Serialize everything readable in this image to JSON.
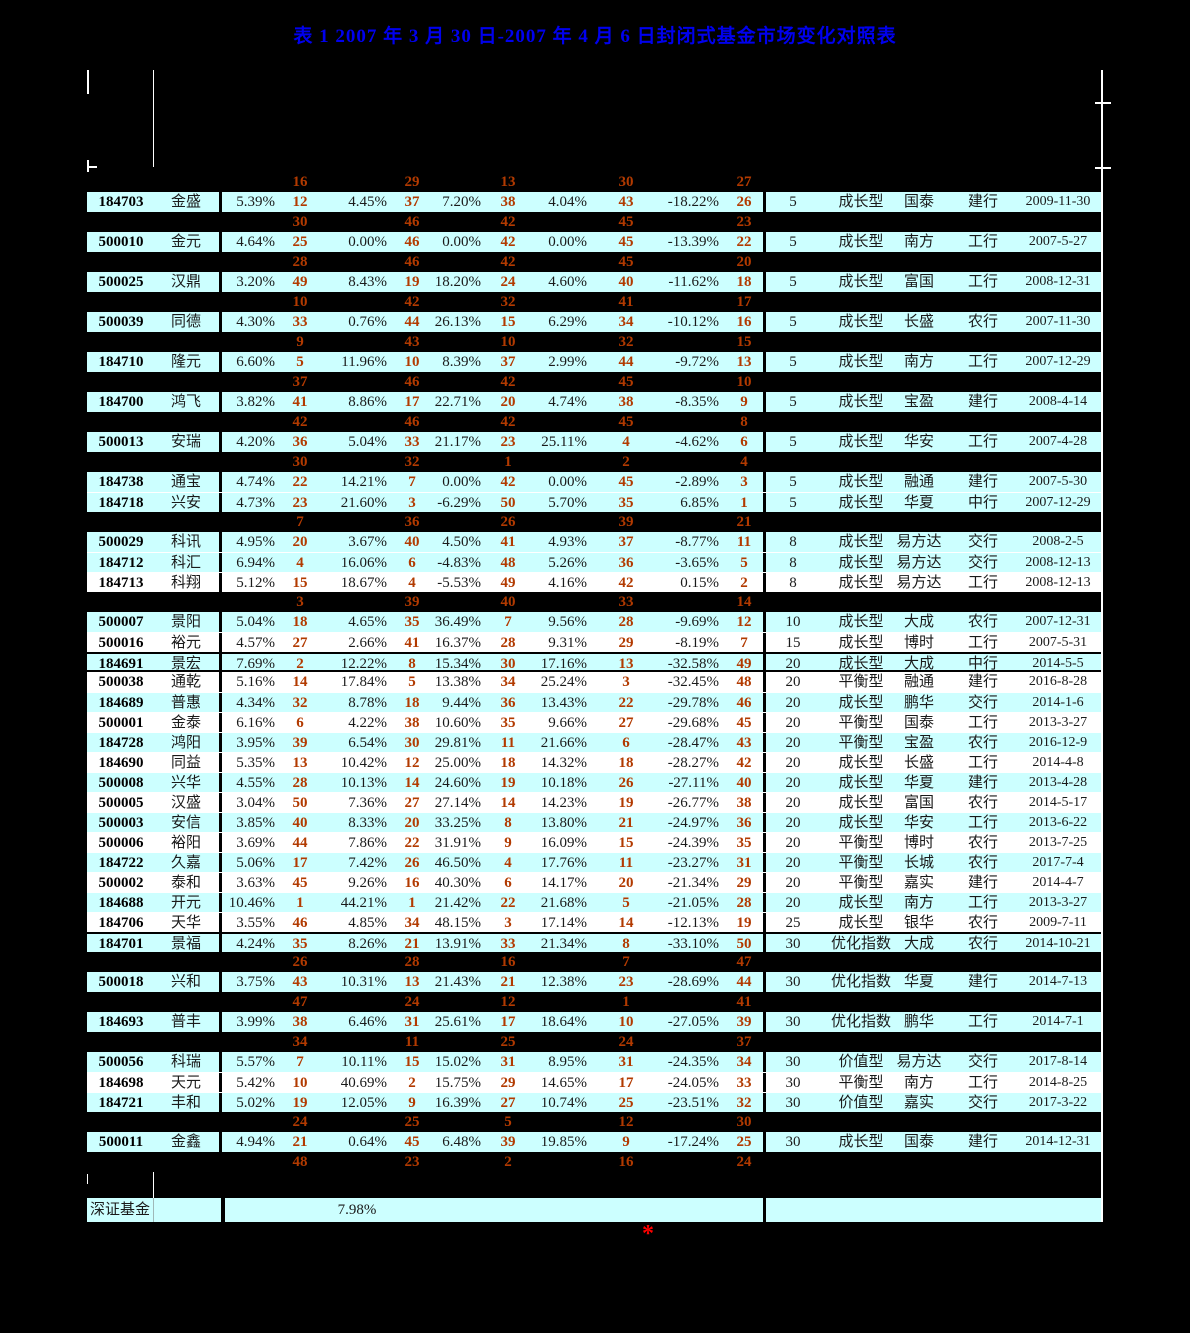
{
  "title": "表 1 2007 年 3 月 30 日-2007 年 4 月 6 日封闭式基金市场变化对照表",
  "marker": "*",
  "colors": {
    "row_cyan": "#ccffff",
    "row_white": "#ffffff",
    "rank_orange": "#b23a00",
    "title_blue": "#0000ee",
    "grid_white": "#ffffff",
    "marker_red": "#ff0000",
    "background": "#000000"
  },
  "table": {
    "footer": {
      "label": "深证基金",
      "value": "7.98%"
    },
    "rows": [
      {
        "kind": "sep",
        "nums": [
          "16",
          "29",
          "13",
          "30",
          "27"
        ]
      },
      {
        "kind": "fund",
        "shade": "cyan",
        "code": "184703",
        "name": "金盛",
        "cells": [
          "5.39%",
          "12",
          "4.45%",
          "37",
          "7.20%",
          "38",
          "4.04%",
          "43",
          "-18.22%",
          "26"
        ],
        "group": "5",
        "type": "成长型",
        "company": "国泰",
        "bank": "建行",
        "date": "2009-11-30"
      },
      {
        "kind": "sep",
        "nums": [
          "30",
          "46",
          "42",
          "45",
          "23"
        ]
      },
      {
        "kind": "fund",
        "shade": "cyan",
        "code": "500010",
        "name": "金元",
        "cells": [
          "4.64%",
          "25",
          "0.00%",
          "46",
          "0.00%",
          "42",
          "0.00%",
          "45",
          "-13.39%",
          "22"
        ],
        "group": "5",
        "type": "成长型",
        "company": "南方",
        "bank": "工行",
        "date": "2007-5-27"
      },
      {
        "kind": "sep",
        "nums": [
          "28",
          "46",
          "42",
          "45",
          "20"
        ]
      },
      {
        "kind": "fund",
        "shade": "cyan",
        "code": "500025",
        "name": "汉鼎",
        "cells": [
          "3.20%",
          "49",
          "8.43%",
          "19",
          "18.20%",
          "24",
          "4.60%",
          "40",
          "-11.62%",
          "18"
        ],
        "group": "5",
        "type": "成长型",
        "company": "富国",
        "bank": "工行",
        "date": "2008-12-31"
      },
      {
        "kind": "sep",
        "nums": [
          "10",
          "42",
          "32",
          "41",
          "17"
        ]
      },
      {
        "kind": "fund",
        "shade": "cyan",
        "code": "500039",
        "name": "同德",
        "cells": [
          "4.30%",
          "33",
          "0.76%",
          "44",
          "26.13%",
          "15",
          "6.29%",
          "34",
          "-10.12%",
          "16"
        ],
        "group": "5",
        "type": "成长型",
        "company": "长盛",
        "bank": "农行",
        "date": "2007-11-30"
      },
      {
        "kind": "sep",
        "nums": [
          "9",
          "43",
          "10",
          "32",
          "15"
        ]
      },
      {
        "kind": "fund",
        "shade": "cyan",
        "code": "184710",
        "name": "隆元",
        "cells": [
          "6.60%",
          "5",
          "11.96%",
          "10",
          "8.39%",
          "37",
          "2.99%",
          "44",
          "-9.72%",
          "13"
        ],
        "group": "5",
        "type": "成长型",
        "company": "南方",
        "bank": "工行",
        "date": "2007-12-29"
      },
      {
        "kind": "sep",
        "nums": [
          "37",
          "46",
          "42",
          "45",
          "10"
        ]
      },
      {
        "kind": "fund",
        "shade": "cyan",
        "code": "184700",
        "name": "鸿飞",
        "cells": [
          "3.82%",
          "41",
          "8.86%",
          "17",
          "22.71%",
          "20",
          "4.74%",
          "38",
          "-8.35%",
          "9"
        ],
        "group": "5",
        "type": "成长型",
        "company": "宝盈",
        "bank": "建行",
        "date": "2008-4-14"
      },
      {
        "kind": "sep",
        "nums": [
          "42",
          "46",
          "42",
          "45",
          "8"
        ]
      },
      {
        "kind": "fund",
        "shade": "cyan",
        "code": "500013",
        "name": "安瑞",
        "cells": [
          "4.20%",
          "36",
          "5.04%",
          "33",
          "21.17%",
          "23",
          "25.11%",
          "4",
          "-4.62%",
          "6"
        ],
        "group": "5",
        "type": "成长型",
        "company": "华安",
        "bank": "工行",
        "date": "2007-4-28"
      },
      {
        "kind": "sep",
        "nums": [
          "30",
          "32",
          "1",
          "2",
          "4"
        ]
      },
      {
        "kind": "fund",
        "shade": "cyan",
        "code": "184738",
        "name": "通宝",
        "cells": [
          "4.74%",
          "22",
          "14.21%",
          "7",
          "0.00%",
          "42",
          "0.00%",
          "45",
          "-2.89%",
          "3"
        ],
        "group": "5",
        "type": "成长型",
        "company": "融通",
        "bank": "建行",
        "date": "2007-5-30"
      },
      {
        "kind": "fund",
        "shade": "cyan",
        "bt": "white",
        "code": "184718",
        "name": "兴安",
        "cells": [
          "4.73%",
          "23",
          "21.60%",
          "3",
          "-6.29%",
          "50",
          "5.70%",
          "35",
          "6.85%",
          "1"
        ],
        "group": "5",
        "type": "成长型",
        "company": "华夏",
        "bank": "中行",
        "date": "2007-12-29"
      },
      {
        "kind": "sep",
        "nums": [
          "7",
          "36",
          "26",
          "39",
          "21"
        ]
      },
      {
        "kind": "fund",
        "shade": "cyan",
        "code": "500029",
        "name": "科讯",
        "cells": [
          "4.95%",
          "20",
          "3.67%",
          "40",
          "4.50%",
          "41",
          "4.93%",
          "37",
          "-8.77%",
          "11"
        ],
        "group": "8",
        "type": "成长型",
        "company": "易方达",
        "bank": "交行",
        "date": "2008-2-5"
      },
      {
        "kind": "fund",
        "shade": "cyan",
        "bt": "white",
        "code": "184712",
        "name": "科汇",
        "cells": [
          "6.94%",
          "4",
          "16.06%",
          "6",
          "-4.83%",
          "48",
          "5.26%",
          "36",
          "-3.65%",
          "5"
        ],
        "group": "8",
        "type": "成长型",
        "company": "易方达",
        "bank": "交行",
        "date": "2008-12-13"
      },
      {
        "kind": "fund",
        "shade": "white",
        "bt": "white",
        "code": "184713",
        "name": "科翔",
        "cells": [
          "5.12%",
          "15",
          "18.67%",
          "4",
          "-5.53%",
          "49",
          "4.16%",
          "42",
          "0.15%",
          "2"
        ],
        "group": "8",
        "type": "成长型",
        "company": "易方达",
        "bank": "工行",
        "date": "2008-12-13"
      },
      {
        "kind": "sep",
        "nums": [
          "3",
          "39",
          "40",
          "33",
          "14"
        ]
      },
      {
        "kind": "fund",
        "shade": "cyan",
        "code": "500007",
        "name": "景阳",
        "cells": [
          "5.04%",
          "18",
          "4.65%",
          "35",
          "36.49%",
          "7",
          "9.56%",
          "28",
          "-9.69%",
          "12"
        ],
        "group": "10",
        "type": "成长型",
        "company": "大成",
        "bank": "农行",
        "date": "2007-12-31"
      },
      {
        "kind": "fund",
        "shade": "white",
        "bt": "white",
        "code": "500016",
        "name": "裕元",
        "cells": [
          "4.57%",
          "27",
          "2.66%",
          "41",
          "16.37%",
          "28",
          "9.31%",
          "29",
          "-8.19%",
          "7"
        ],
        "group": "15",
        "type": "成长型",
        "company": "博时",
        "bank": "工行",
        "date": "2007-5-31"
      },
      {
        "kind": "fund",
        "shade": "cyan",
        "bt": "black",
        "bb": "black",
        "code": "184691",
        "name": "景宏",
        "cells": [
          "7.69%",
          "2",
          "12.22%",
          "8",
          "15.34%",
          "30",
          "17.16%",
          "13",
          "-32.58%",
          "49"
        ],
        "group": "20",
        "type": "成长型",
        "company": "大成",
        "bank": "中行",
        "date": "2014-5-5"
      },
      {
        "kind": "fund",
        "shade": "white",
        "code": "500038",
        "name": "通乾",
        "cells": [
          "5.16%",
          "14",
          "17.84%",
          "5",
          "13.38%",
          "34",
          "25.24%",
          "3",
          "-32.45%",
          "48"
        ],
        "group": "20",
        "type": "平衡型",
        "company": "融通",
        "bank": "建行",
        "date": "2016-8-28"
      },
      {
        "kind": "fund",
        "shade": "cyan",
        "bt": "white",
        "code": "184689",
        "name": "普惠",
        "cells": [
          "4.34%",
          "32",
          "8.78%",
          "18",
          "9.44%",
          "36",
          "13.43%",
          "22",
          "-29.78%",
          "46"
        ],
        "group": "20",
        "type": "成长型",
        "company": "鹏华",
        "bank": "交行",
        "date": "2014-1-6"
      },
      {
        "kind": "fund",
        "shade": "white",
        "bt": "white",
        "code": "500001",
        "name": "金泰",
        "cells": [
          "6.16%",
          "6",
          "4.22%",
          "38",
          "10.60%",
          "35",
          "9.66%",
          "27",
          "-29.68%",
          "45"
        ],
        "group": "20",
        "type": "平衡型",
        "company": "国泰",
        "bank": "工行",
        "date": "2013-3-27"
      },
      {
        "kind": "fund",
        "shade": "cyan",
        "bt": "white",
        "code": "184728",
        "name": "鸿阳",
        "cells": [
          "3.95%",
          "39",
          "6.54%",
          "30",
          "29.81%",
          "11",
          "21.66%",
          "6",
          "-28.47%",
          "43"
        ],
        "group": "20",
        "type": "平衡型",
        "company": "宝盈",
        "bank": "农行",
        "date": "2016-12-9"
      },
      {
        "kind": "fund",
        "shade": "white",
        "bt": "white",
        "code": "184690",
        "name": "同益",
        "cells": [
          "5.35%",
          "13",
          "10.42%",
          "12",
          "25.00%",
          "18",
          "14.32%",
          "18",
          "-28.27%",
          "42"
        ],
        "group": "20",
        "type": "成长型",
        "company": "长盛",
        "bank": "工行",
        "date": "2014-4-8"
      },
      {
        "kind": "fund",
        "shade": "cyan",
        "bt": "white",
        "code": "500008",
        "name": "兴华",
        "cells": [
          "4.55%",
          "28",
          "10.13%",
          "14",
          "24.60%",
          "19",
          "10.18%",
          "26",
          "-27.11%",
          "40"
        ],
        "group": "20",
        "type": "成长型",
        "company": "华夏",
        "bank": "建行",
        "date": "2013-4-28"
      },
      {
        "kind": "fund",
        "shade": "white",
        "bt": "white",
        "code": "500005",
        "name": "汉盛",
        "cells": [
          "3.04%",
          "50",
          "7.36%",
          "27",
          "27.14%",
          "14",
          "14.23%",
          "19",
          "-26.77%",
          "38"
        ],
        "group": "20",
        "type": "成长型",
        "company": "富国",
        "bank": "农行",
        "date": "2014-5-17"
      },
      {
        "kind": "fund",
        "shade": "cyan",
        "bt": "white",
        "code": "500003",
        "name": "安信",
        "cells": [
          "3.85%",
          "40",
          "8.33%",
          "20",
          "33.25%",
          "8",
          "13.80%",
          "21",
          "-24.97%",
          "36"
        ],
        "group": "20",
        "type": "成长型",
        "company": "华安",
        "bank": "工行",
        "date": "2013-6-22"
      },
      {
        "kind": "fund",
        "shade": "white",
        "bt": "white",
        "code": "500006",
        "name": "裕阳",
        "cells": [
          "3.69%",
          "44",
          "7.86%",
          "22",
          "31.91%",
          "9",
          "16.09%",
          "15",
          "-24.39%",
          "35"
        ],
        "group": "20",
        "type": "平衡型",
        "company": "博时",
        "bank": "农行",
        "date": "2013-7-25"
      },
      {
        "kind": "fund",
        "shade": "cyan",
        "bt": "white",
        "code": "184722",
        "name": "久嘉",
        "cells": [
          "5.06%",
          "17",
          "7.42%",
          "26",
          "46.50%",
          "4",
          "17.76%",
          "11",
          "-23.27%",
          "31"
        ],
        "group": "20",
        "type": "平衡型",
        "company": "长城",
        "bank": "农行",
        "date": "2017-7-4"
      },
      {
        "kind": "fund",
        "shade": "white",
        "bt": "white",
        "code": "500002",
        "name": "泰和",
        "cells": [
          "3.63%",
          "45",
          "9.26%",
          "16",
          "40.30%",
          "6",
          "14.17%",
          "20",
          "-21.34%",
          "29"
        ],
        "group": "20",
        "type": "平衡型",
        "company": "嘉实",
        "bank": "建行",
        "date": "2014-4-7"
      },
      {
        "kind": "fund",
        "shade": "cyan",
        "bt": "white",
        "code": "184688",
        "name": "开元",
        "cells": [
          "10.46%",
          "1",
          "44.21%",
          "1",
          "21.42%",
          "22",
          "21.68%",
          "5",
          "-21.05%",
          "28"
        ],
        "group": "20",
        "type": "成长型",
        "company": "南方",
        "bank": "工行",
        "date": "2013-3-27"
      },
      {
        "kind": "fund",
        "shade": "white",
        "bt": "white",
        "code": "184706",
        "name": "天华",
        "cells": [
          "3.55%",
          "46",
          "4.85%",
          "34",
          "48.15%",
          "3",
          "17.14%",
          "14",
          "-12.13%",
          "19"
        ],
        "group": "25",
        "type": "成长型",
        "company": "银华",
        "bank": "农行",
        "date": "2009-7-11"
      },
      {
        "kind": "fund",
        "shade": "cyan",
        "bt": "black",
        "code": "184701",
        "name": "景福",
        "cells": [
          "4.24%",
          "35",
          "8.26%",
          "21",
          "13.91%",
          "33",
          "21.34%",
          "8",
          "-33.10%",
          "50"
        ],
        "group": "30",
        "type": "优化指数",
        "company": "大成",
        "bank": "农行",
        "date": "2014-10-21"
      },
      {
        "kind": "sep",
        "nums": [
          "26",
          "28",
          "16",
          "7",
          "47"
        ]
      },
      {
        "kind": "fund",
        "shade": "cyan",
        "code": "500018",
        "name": "兴和",
        "cells": [
          "3.75%",
          "43",
          "10.31%",
          "13",
          "21.43%",
          "21",
          "12.38%",
          "23",
          "-28.69%",
          "44"
        ],
        "group": "30",
        "type": "优化指数",
        "company": "华夏",
        "bank": "建行",
        "date": "2014-7-13"
      },
      {
        "kind": "sep",
        "nums": [
          "47",
          "24",
          "12",
          "1",
          "41"
        ]
      },
      {
        "kind": "fund",
        "shade": "cyan",
        "code": "184693",
        "name": "普丰",
        "cells": [
          "3.99%",
          "38",
          "6.46%",
          "31",
          "25.61%",
          "17",
          "18.64%",
          "10",
          "-27.05%",
          "39"
        ],
        "group": "30",
        "type": "优化指数",
        "company": "鹏华",
        "bank": "工行",
        "date": "2014-7-1"
      },
      {
        "kind": "sep",
        "nums": [
          "34",
          "11",
          "25",
          "24",
          "37"
        ]
      },
      {
        "kind": "fund",
        "shade": "cyan",
        "code": "500056",
        "name": "科瑞",
        "cells": [
          "5.57%",
          "7",
          "10.11%",
          "15",
          "15.02%",
          "31",
          "8.95%",
          "31",
          "-24.35%",
          "34"
        ],
        "group": "30",
        "type": "价值型",
        "company": "易方达",
        "bank": "交行",
        "date": "2017-8-14"
      },
      {
        "kind": "fund",
        "shade": "white",
        "bt": "white",
        "code": "184698",
        "name": "天元",
        "cells": [
          "5.42%",
          "10",
          "40.69%",
          "2",
          "15.75%",
          "29",
          "14.65%",
          "17",
          "-24.05%",
          "33"
        ],
        "group": "30",
        "type": "平衡型",
        "company": "南方",
        "bank": "工行",
        "date": "2014-8-25"
      },
      {
        "kind": "fund",
        "shade": "cyan",
        "bt": "white",
        "code": "184721",
        "name": "丰和",
        "cells": [
          "5.02%",
          "19",
          "12.05%",
          "9",
          "16.39%",
          "27",
          "10.74%",
          "25",
          "-23.51%",
          "32"
        ],
        "group": "30",
        "type": "价值型",
        "company": "嘉实",
        "bank": "交行",
        "date": "2017-3-22"
      },
      {
        "kind": "sep",
        "nums": [
          "24",
          "25",
          "5",
          "12",
          "30"
        ]
      },
      {
        "kind": "fund",
        "shade": "cyan",
        "code": "500011",
        "name": "金鑫",
        "cells": [
          "4.94%",
          "21",
          "0.64%",
          "45",
          "6.48%",
          "39",
          "19.85%",
          "9",
          "-17.24%",
          "25"
        ],
        "group": "30",
        "type": "成长型",
        "company": "国泰",
        "bank": "建行",
        "date": "2014-12-31"
      },
      {
        "kind": "sep",
        "nums": [
          "48",
          "23",
          "2",
          "16",
          "24"
        ]
      }
    ]
  }
}
